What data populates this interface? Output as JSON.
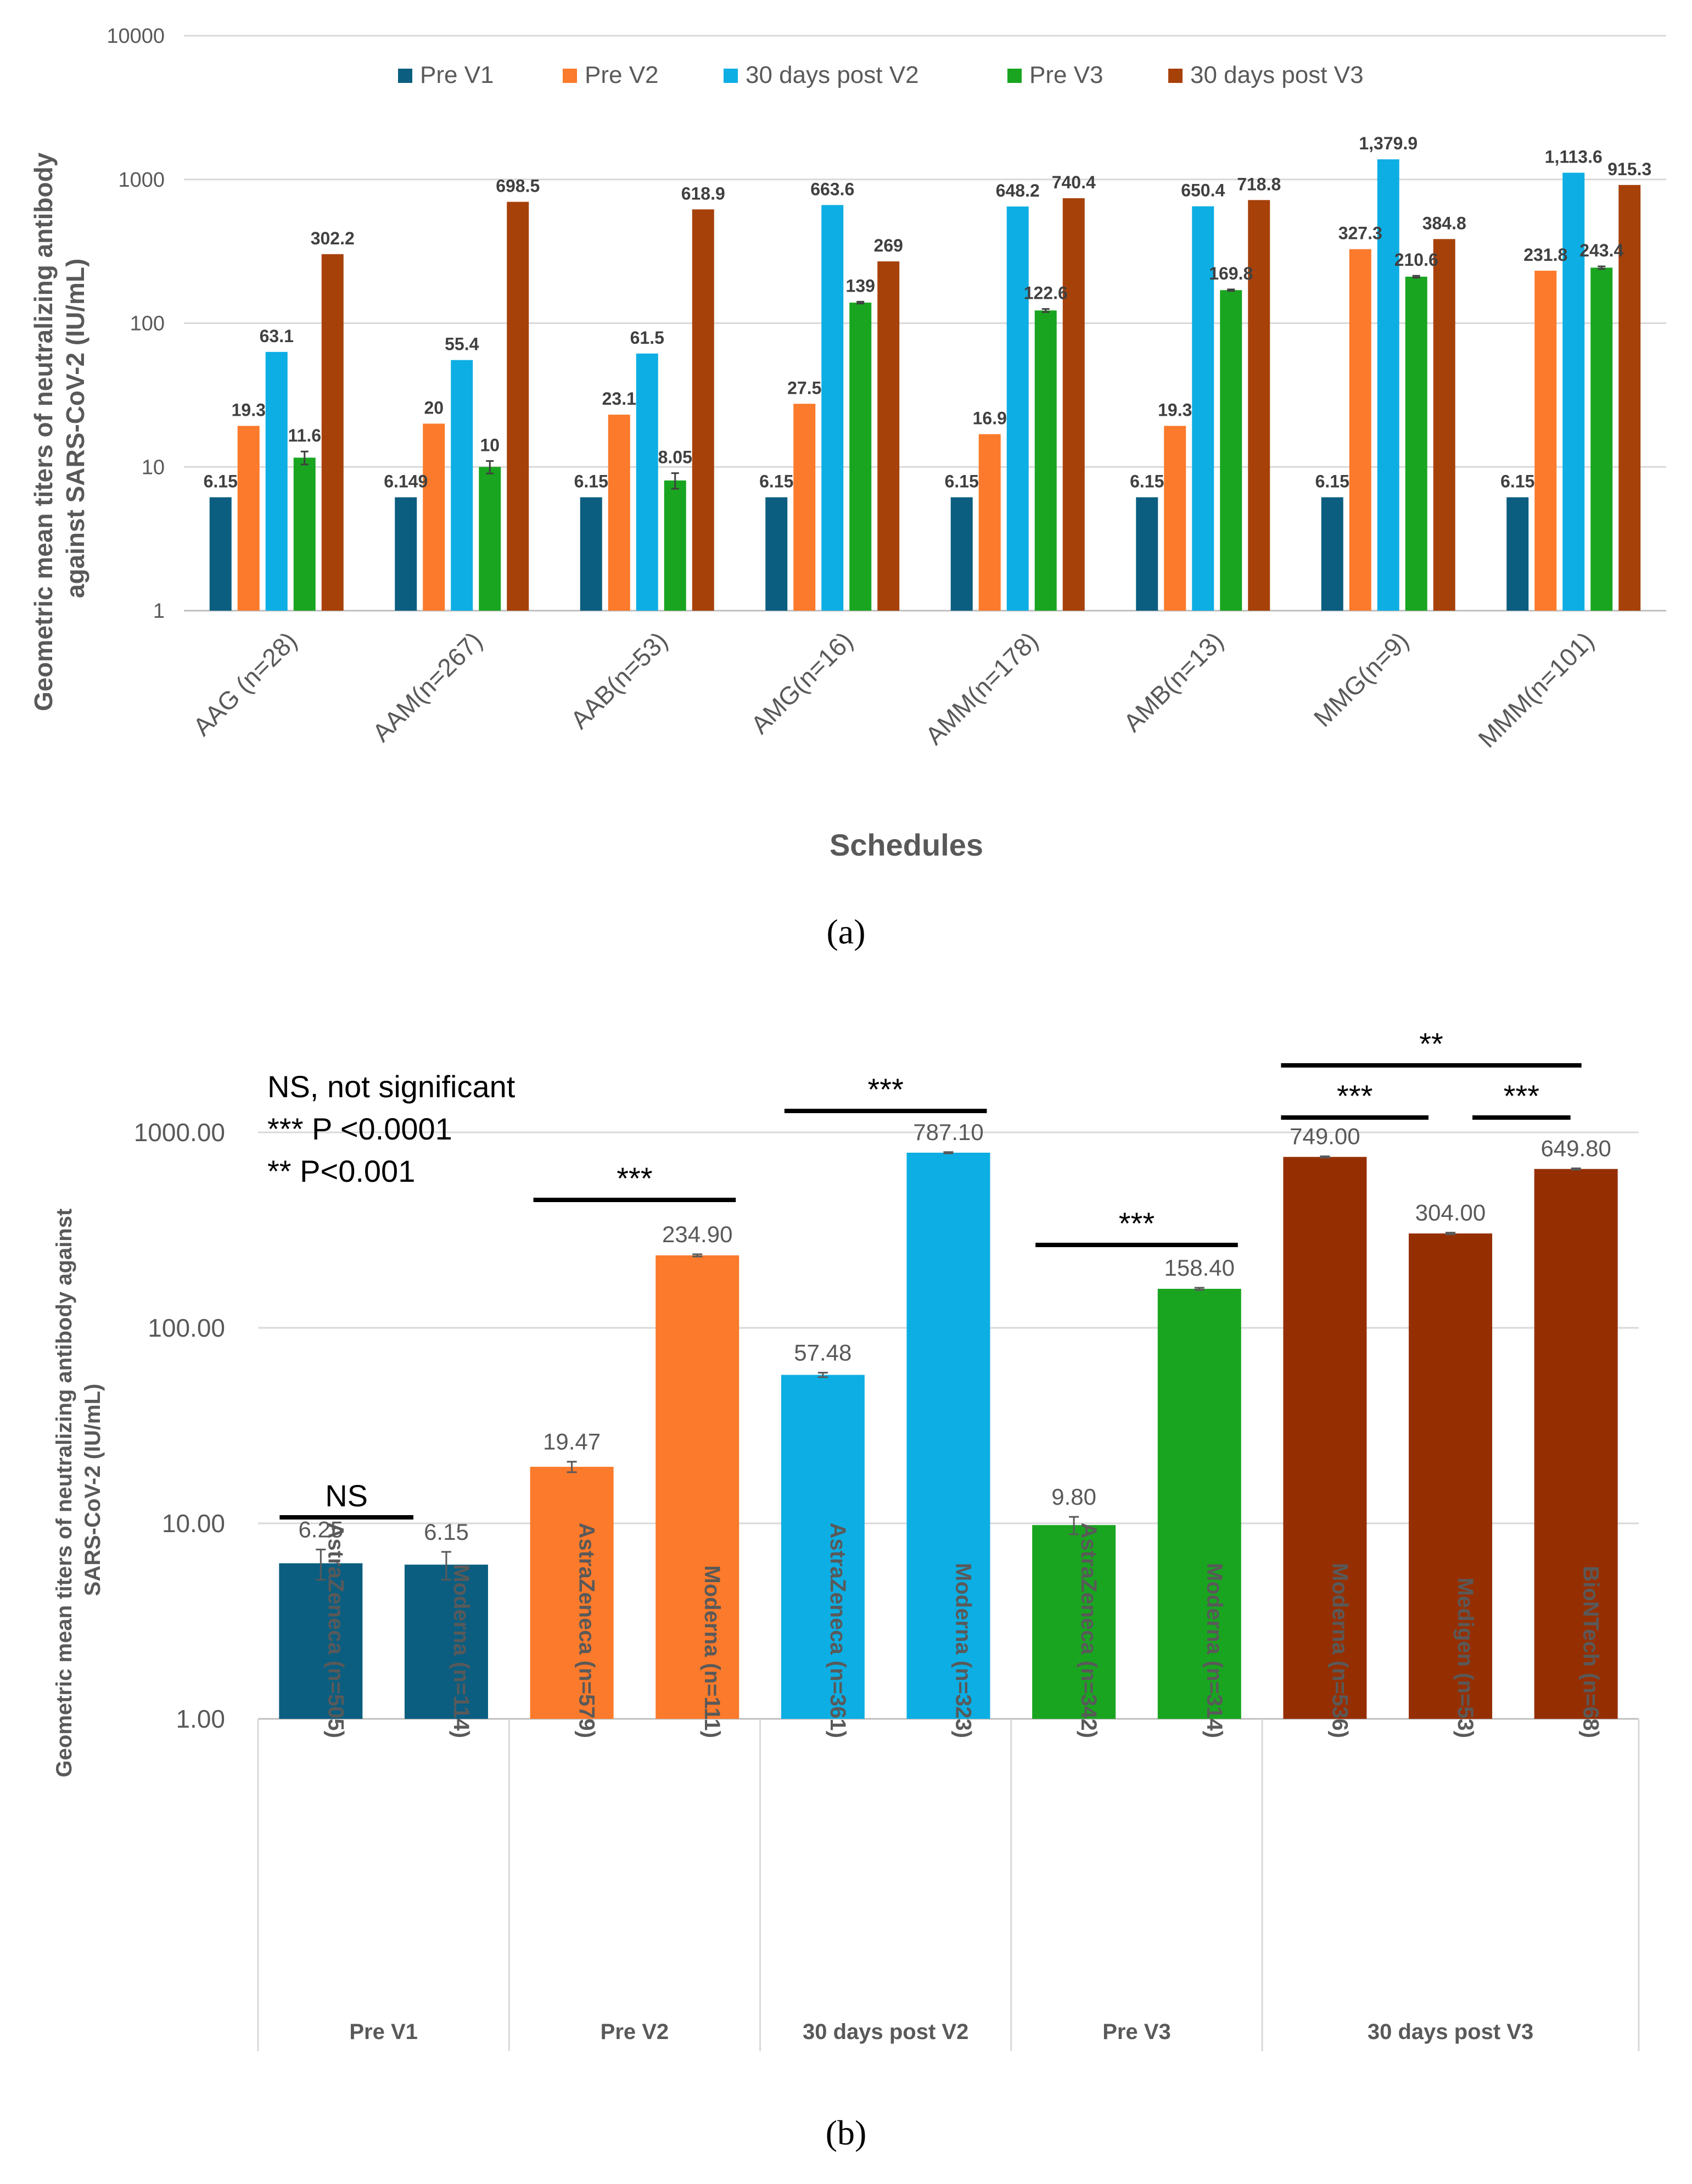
{
  "colors": {
    "pre_v1": "#0b5e80",
    "pre_v2": "#fb7a2b",
    "post_v2": "#0daee3",
    "pre_v3": "#19a520",
    "post_v3": "#a7410a",
    "post_v3_dark": "#952f02",
    "gridline": "#d9d9d9",
    "axis_text": "#595959",
    "label_text": "#404040",
    "title_text": "#595959"
  },
  "panel_a_caption": "(a)",
  "panel_b_caption": "(b)",
  "chart_data": [
    {
      "type": "bar",
      "scale": "log",
      "title": "",
      "xlabel": "Schedules",
      "ylabel_lines": [
        "Geometric mean titers of neutralizing antibody",
        "against SARS-CoV-2 (IU/mL)"
      ],
      "ylim": [
        1,
        10000
      ],
      "yticks": [
        "1",
        "10",
        "100",
        "1000",
        "10000"
      ],
      "legend_position": "top",
      "categories": [
        "AAG (n=28)",
        "AAM(n=267)",
        "AAB(n=53)",
        "AMG(n=16)",
        "AMM(n=178)",
        "AMB(n=13)",
        "MMG(n=9)",
        "MMM(n=101)"
      ],
      "series": [
        {
          "name": "Pre V1",
          "color_key": "pre_v1",
          "values": [
            6.15,
            6.149,
            6.15,
            6.15,
            6.15,
            6.15,
            6.15,
            6.15
          ],
          "labels": [
            "6.15",
            "6.149",
            "6.15",
            "6.15",
            "6.15",
            "6.15",
            "6.15",
            "6.15"
          ],
          "errors": [
            0,
            0,
            0,
            0,
            0,
            0,
            0,
            0
          ]
        },
        {
          "name": "Pre V2",
          "color_key": "pre_v2",
          "values": [
            19.3,
            20,
            23.1,
            27.5,
            16.9,
            19.3,
            327.3,
            231.8
          ],
          "labels": [
            "19.3",
            "20",
            "23.1",
            "27.5",
            "16.9",
            "19.3",
            "327.3",
            "231.8"
          ],
          "errors": [
            0,
            0,
            0,
            0,
            0,
            0,
            0,
            0
          ]
        },
        {
          "name": "30 days post V2",
          "color_key": "post_v2",
          "values": [
            63.1,
            55.4,
            61.5,
            663.6,
            648.2,
            650.4,
            1379.9,
            1113.6
          ],
          "labels": [
            "63.1",
            "55.4",
            "61.5",
            "663.6",
            "648.2",
            "650.4",
            "1,379.9",
            "1,113.6"
          ],
          "errors": [
            0,
            0,
            0,
            0,
            0,
            0,
            0,
            0
          ]
        },
        {
          "name": "Pre V3",
          "color_key": "pre_v3",
          "values": [
            11.6,
            10,
            8.05,
            139,
            122.6,
            169.8,
            210.6,
            243.4
          ],
          "labels": [
            "11.6",
            "10",
            "8.05",
            "139",
            "122.6",
            "169.8",
            "210.6",
            "243.4"
          ],
          "errors": [
            1.2,
            1.0,
            1.0,
            2,
            3,
            2,
            3,
            5
          ]
        },
        {
          "name": "30 days post V3",
          "color_key": "post_v3",
          "values": [
            302.2,
            698.5,
            618.9,
            269,
            740.4,
            718.8,
            384.8,
            915.3
          ],
          "labels": [
            "302.2",
            "698.5",
            "618.9",
            "269",
            "740.4",
            "718.8",
            "384.8",
            "915.3"
          ],
          "errors": [
            0,
            0,
            0,
            0,
            0,
            0,
            0,
            0
          ]
        }
      ]
    },
    {
      "type": "bar",
      "scale": "log",
      "title": "",
      "ylabel_lines": [
        "Geometric mean titers of neutralizing antibody against",
        "SARS-CoV-2 (IU/mL)"
      ],
      "ylim": [
        1,
        1000
      ],
      "yticks": [
        "1.00",
        "10.00",
        "100.00",
        "1000.00"
      ],
      "legend_notes": [
        "NS, not significant",
        "*** P <0.0001",
        "** P<0.001"
      ],
      "groups": [
        {
          "name": "Pre V1",
          "color_key": "pre_v1",
          "bars": [
            {
              "category": "AstraZeneca (n=505)",
              "value": 6.25,
              "label": "6.25",
              "error": 1.1
            },
            {
              "category": "Moderna (n=114)",
              "value": 6.15,
              "label": "6.15",
              "error": 1.0
            }
          ]
        },
        {
          "name": "Pre V2",
          "color_key": "pre_v2",
          "bars": [
            {
              "category": "AstraZeneca (n=579)",
              "value": 19.47,
              "label": "19.47",
              "error": 1.2
            },
            {
              "category": "Moderna (n=111)",
              "value": 234.9,
              "label": "234.90",
              "error": 3
            }
          ]
        },
        {
          "name": "30 days post V2",
          "color_key": "post_v2",
          "bars": [
            {
              "category": "AstraZeneca (n=361)",
              "value": 57.48,
              "label": "57.48",
              "error": 1.5
            },
            {
              "category": "Moderna (n=323)",
              "value": 787.1,
              "label": "787.10",
              "error": 6
            }
          ]
        },
        {
          "name": "Pre V3",
          "color_key": "pre_v3",
          "bars": [
            {
              "category": "AstraZeneca (n=342)",
              "value": 9.8,
              "label": "9.80",
              "error": 1.0
            },
            {
              "category": "Moderna (n=314)",
              "value": 158.4,
              "label": "158.40",
              "error": 2
            }
          ]
        },
        {
          "name": "30 days post V3",
          "color_key": "post_v3_dark",
          "bars": [
            {
              "category": "Moderna (n=536)",
              "value": 749,
              "label": "749.00",
              "error": 5
            },
            {
              "category": "Medigen (n=53)",
              "value": 304,
              "label": "304.00",
              "error": 3
            },
            {
              "category": "BioNTech (n=68)",
              "value": 649.8,
              "label": "649.80",
              "error": 5
            }
          ]
        }
      ],
      "annotations": [
        {
          "text": "NS",
          "from_bar": 0,
          "to_bar": 1,
          "level": 0
        },
        {
          "text": "***",
          "from_bar": 2,
          "to_bar": 3,
          "level": 0
        },
        {
          "text": "***",
          "from_bar": 4,
          "to_bar": 5,
          "level": 0
        },
        {
          "text": "***",
          "from_bar": 6,
          "to_bar": 7,
          "level": 0
        },
        {
          "text": "***",
          "from_bar": 8,
          "to_bar": 9,
          "level": 0
        },
        {
          "text": "***",
          "from_bar": 9,
          "to_bar": 10,
          "level": 0
        },
        {
          "text": "**",
          "from_bar": 8,
          "to_bar": 10,
          "level": 1
        }
      ]
    }
  ]
}
